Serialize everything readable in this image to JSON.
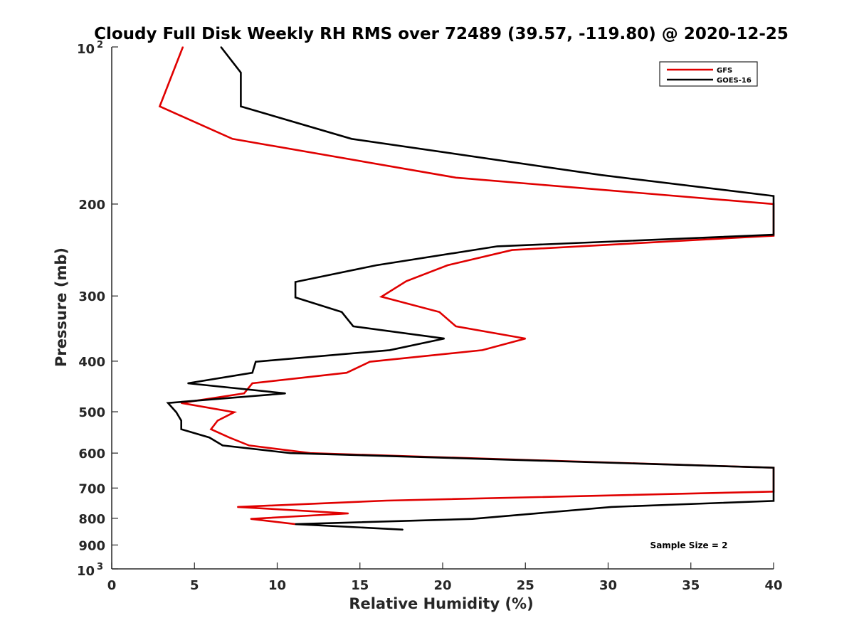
{
  "chart_data": {
    "type": "line",
    "title": "Cloudy Full Disk Weekly RH RMS over 72489 (39.57, -119.80) @ 2020-12-25",
    "xlabel": "Relative Humidity (%)",
    "ylabel": "Pressure (mb)",
    "xlim": [
      0,
      40
    ],
    "ylim": [
      100,
      1000
    ],
    "y_scale": "log",
    "y_reversed": true,
    "grid": false,
    "legend_position": "top-right",
    "x_ticks": [
      0,
      5,
      10,
      15,
      20,
      25,
      30,
      35,
      40
    ],
    "x_tick_labels": [
      "0",
      "5",
      "10",
      "15",
      "20",
      "25",
      "30",
      "35",
      "40"
    ],
    "y_ticks": [
      200,
      300,
      400,
      500,
      600,
      700,
      800,
      900
    ],
    "y_tick_labels": [
      "200",
      "300",
      "400",
      "500",
      "600",
      "700",
      "800",
      "900"
    ],
    "y_decade_ticks": [
      100,
      1000
    ],
    "y_decade_labels": [
      {
        "base": "10",
        "exp": "2"
      },
      {
        "base": "10",
        "exp": "3"
      }
    ],
    "annotation": "Sample Size = 2",
    "series": [
      {
        "name": "GFS",
        "color": "#e00000",
        "points": [
          {
            "x": 4.3,
            "y": 100
          },
          {
            "x": 2.9,
            "y": 130
          },
          {
            "x": 7.3,
            "y": 150
          },
          {
            "x": 20.8,
            "y": 178
          },
          {
            "x": 40,
            "y": 200
          },
          {
            "x": 40,
            "y": 230
          },
          {
            "x": 24.2,
            "y": 245
          },
          {
            "x": 20.3,
            "y": 262
          },
          {
            "x": 17.8,
            "y": 281
          },
          {
            "x": 16.3,
            "y": 301
          },
          {
            "x": 19.8,
            "y": 322
          },
          {
            "x": 20.8,
            "y": 343
          },
          {
            "x": 25,
            "y": 362
          },
          {
            "x": 22.4,
            "y": 381
          },
          {
            "x": 15.6,
            "y": 401
          },
          {
            "x": 14.2,
            "y": 421
          },
          {
            "x": 8.5,
            "y": 441
          },
          {
            "x": 8,
            "y": 461
          },
          {
            "x": 4.2,
            "y": 481
          },
          {
            "x": 7.4,
            "y": 501
          },
          {
            "x": 6.4,
            "y": 520
          },
          {
            "x": 6,
            "y": 540
          },
          {
            "x": 7.1,
            "y": 560
          },
          {
            "x": 8.3,
            "y": 580
          },
          {
            "x": 12,
            "y": 600
          },
          {
            "x": 40,
            "y": 640
          },
          {
            "x": 40,
            "y": 711
          },
          {
            "x": 16.6,
            "y": 740
          },
          {
            "x": 7.6,
            "y": 761
          },
          {
            "x": 14.3,
            "y": 783
          },
          {
            "x": 8.4,
            "y": 802
          },
          {
            "x": 11.1,
            "y": 821
          }
        ]
      },
      {
        "name": "GOES-16",
        "color": "#000000",
        "points": [
          {
            "x": 6.6,
            "y": 100
          },
          {
            "x": 7.8,
            "y": 112
          },
          {
            "x": 7.8,
            "y": 130
          },
          {
            "x": 14.5,
            "y": 150
          },
          {
            "x": 29.6,
            "y": 176
          },
          {
            "x": 40,
            "y": 193
          },
          {
            "x": 40,
            "y": 229
          },
          {
            "x": 23.3,
            "y": 241
          },
          {
            "x": 16,
            "y": 262
          },
          {
            "x": 11.1,
            "y": 282
          },
          {
            "x": 11.1,
            "y": 302
          },
          {
            "x": 13.9,
            "y": 322
          },
          {
            "x": 14.6,
            "y": 343
          },
          {
            "x": 20.1,
            "y": 362
          },
          {
            "x": 16.8,
            "y": 381
          },
          {
            "x": 8.7,
            "y": 401
          },
          {
            "x": 8.5,
            "y": 421
          },
          {
            "x": 4.6,
            "y": 441
          },
          {
            "x": 10.5,
            "y": 461
          },
          {
            "x": 3.4,
            "y": 481
          },
          {
            "x": 3.9,
            "y": 501
          },
          {
            "x": 4.2,
            "y": 520
          },
          {
            "x": 4.2,
            "y": 540
          },
          {
            "x": 5.9,
            "y": 560
          },
          {
            "x": 6.7,
            "y": 580
          },
          {
            "x": 10.8,
            "y": 600
          },
          {
            "x": 40,
            "y": 640
          },
          {
            "x": 40,
            "y": 741
          },
          {
            "x": 30.2,
            "y": 761
          },
          {
            "x": 21.8,
            "y": 802
          },
          {
            "x": 11.1,
            "y": 821
          },
          {
            "x": 17.6,
            "y": 841
          }
        ]
      }
    ]
  }
}
